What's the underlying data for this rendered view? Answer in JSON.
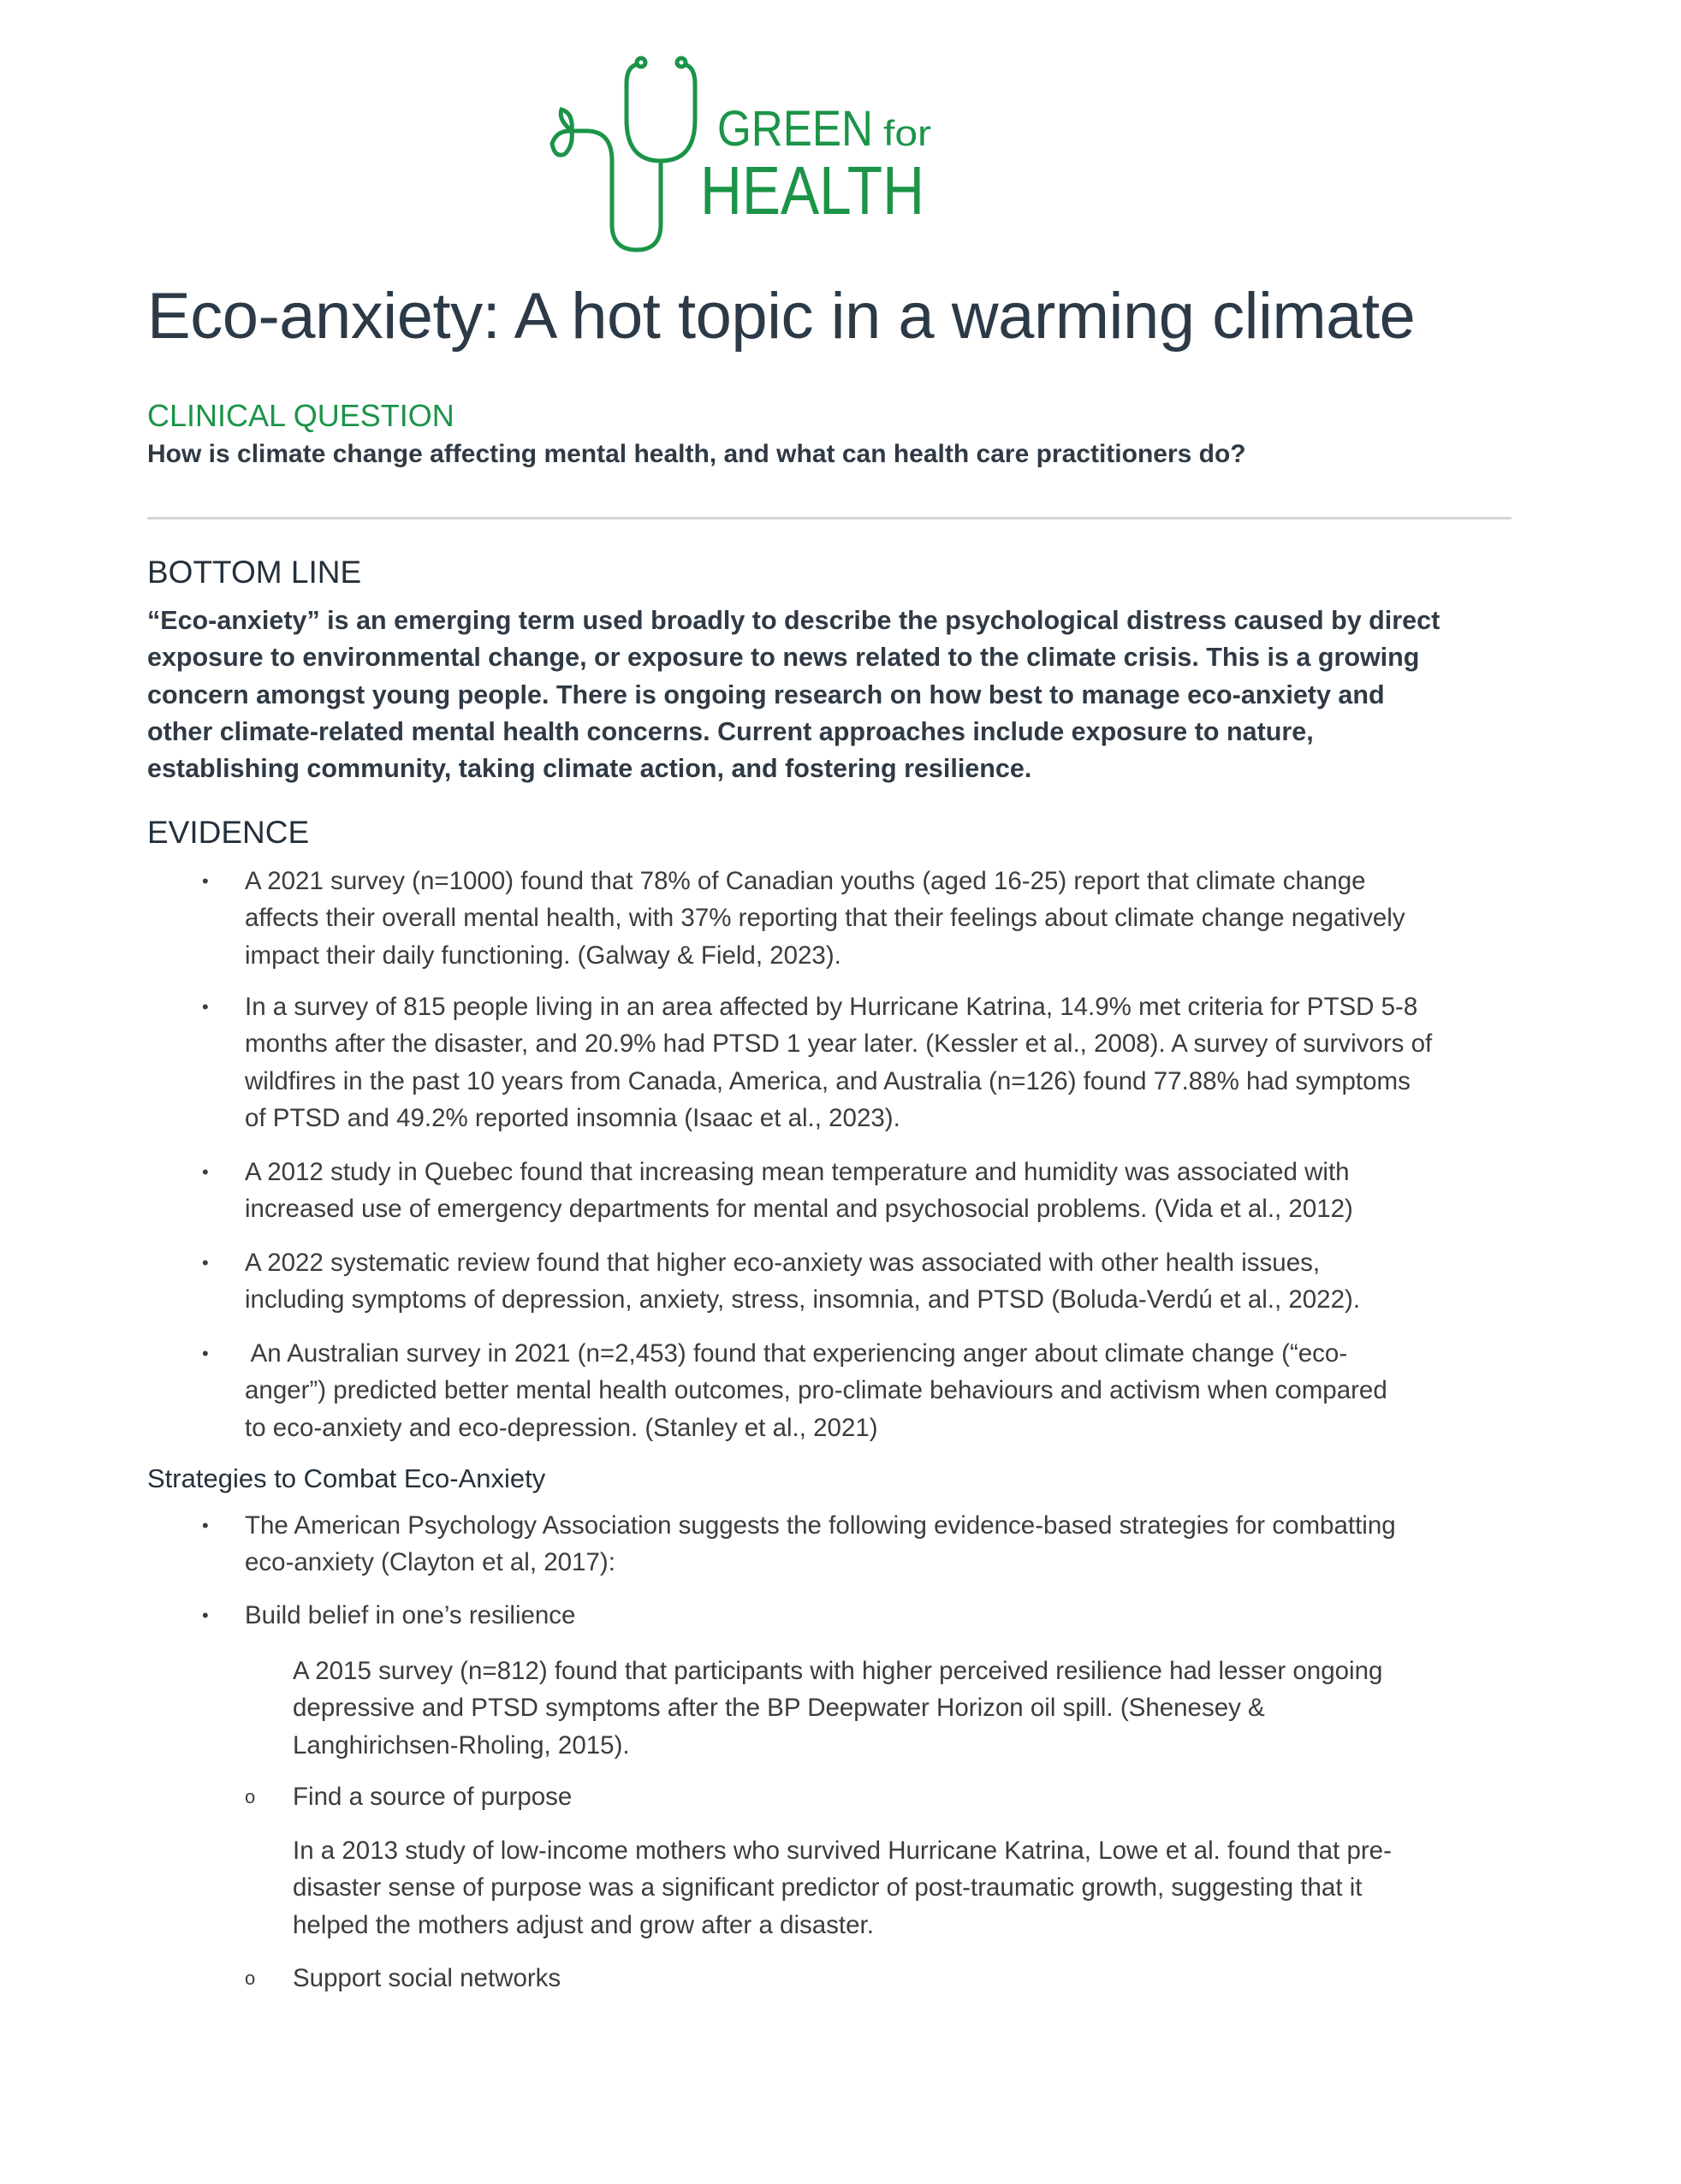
{
  "logo": {
    "line1": "GREEN",
    "line1_small": "for",
    "line2": "HEALTH",
    "color": "#1b9448"
  },
  "title": "Eco-anxiety: A hot topic in a warming climate",
  "clinical_question": {
    "heading": "CLINICAL QUESTION",
    "text": "How is climate change affecting mental health, and what can health care practitioners do?"
  },
  "bottom_line": {
    "heading": "BOTTOM LINE",
    "lines": [
      "“Eco-anxiety” is an emerging term used broadly to describe the psychological distress caused by direct",
      "exposure to environmental change, or exposure to news related to the climate crisis. This is a growing",
      "concern amongst young people. There is ongoing research on how best to manage eco-anxiety and",
      "other climate-related mental health concerns. Current approaches include exposure to nature,",
      "establishing community, taking climate action, and fostering resilience."
    ]
  },
  "evidence": {
    "heading": "EVIDENCE",
    "bullet": "•",
    "items": [
      {
        "lines": [
          "A 2021 survey (n=1000) found that 78% of Canadian youths (aged 16-25) report that climate change",
          "affects their overall mental health, with 37% reporting that their feelings about climate change negatively",
          "impact their daily functioning. (Galway & Field, 2023)."
        ]
      },
      {
        "lines": [
          "In a survey of 815 people living in an area affected by Hurricane Katrina, 14.9% met criteria for PTSD 5-8",
          "months after the disaster, and 20.9% had PTSD 1 year later. (Kessler et al., 2008). A survey of survivors of",
          "wildfires in the past 10 years from Canada, America, and Australia (n=126) found 77.88% had symptoms",
          "of PTSD and 49.2% reported insomnia (Isaac et al., 2023)."
        ]
      },
      {
        "lines": [
          "A 2012 study in Quebec found that increasing mean temperature and humidity was associated with",
          "increased use of emergency departments for mental and psychosocial problems. (Vida et al., 2012)"
        ]
      },
      {
        "lines": [
          "A 2022 systematic review found that higher eco-anxiety was associated with other health issues,",
          "including symptoms of depression, anxiety, stress, insomnia, and PTSD (Boluda-Verdú et al., 2022)."
        ]
      },
      {
        "lines": [
          " An Australian survey in 2021 (n=2,453) found that experiencing anger about climate change (“eco-",
          "anger”) predicted better mental health outcomes, pro-climate behaviours and activism when compared",
          "to eco-anxiety and eco-depression. (Stanley et al., 2021)"
        ]
      }
    ]
  },
  "strategies": {
    "heading": "Strategies to Combat Eco-Anxiety",
    "bullet": "•",
    "sub_bullet": "o",
    "items": [
      {
        "lines": [
          "The American Psychology Association suggests the following evidence-based strategies for combatting",
          "eco-anxiety (Clayton et al, 2017):"
        ]
      },
      {
        "lines": [
          "Build belief in one’s resilience"
        ]
      }
    ],
    "resilience_para": [
      "A 2015 survey (n=812) found that participants with higher perceived resilience had lesser ongoing",
      "depressive and PTSD symptoms after the BP Deepwater Horizon oil spill. (Shenesey &",
      "Langhirichsen-Rholing, 2015)."
    ],
    "purpose": {
      "label": "Find a source of purpose",
      "para": [
        "In a 2013 study of low-income mothers who survived Hurricane Katrina, Lowe et al. found that pre-",
        "disaster sense of purpose was a significant predictor of post-traumatic growth, suggesting that it",
        "helped the mothers adjust and grow after a disaster."
      ]
    },
    "social": {
      "label": "Support social networks"
    }
  }
}
